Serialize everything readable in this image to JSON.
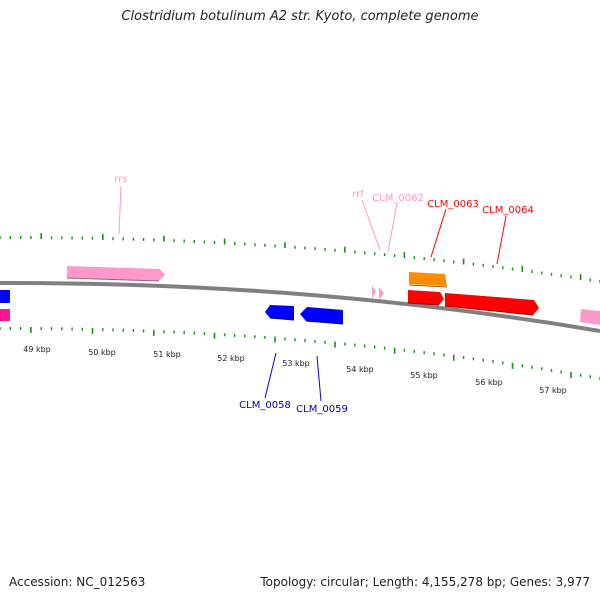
{
  "title": "Clostridium botulinum A2 str. Kyoto, complete genome",
  "footer": {
    "accession": "Accession: NC_012563",
    "summary": "Topology: circular; Length: 4,155,278 bp; Genes: 3,977"
  },
  "colors": {
    "backbone": "#808080",
    "tick": "#1f8a1f",
    "rna_pink": "#ff99cc",
    "red_gene": "#ff0000",
    "orange_gene": "#ff8c00",
    "blue_gene": "#0000ff",
    "magenta_gene": "#ff1493"
  },
  "scale_labels": [
    "49 kbp",
    "50 kbp",
    "51 kbp",
    "52 kbp",
    "53 kbp",
    "54 kbp",
    "55 kbp",
    "56 kbp",
    "57 kbp"
  ],
  "features": {
    "rrs": {
      "name": "rrs",
      "strand": "+",
      "color": "rna_pink"
    },
    "rrf": {
      "name": "rrf",
      "strand": "+",
      "color": "rna_pink"
    },
    "clm_0062": {
      "name": "CLM_0062",
      "strand": "+",
      "color": "rna_pink"
    },
    "clm_0063": {
      "name": "CLM_0063",
      "strand": "+",
      "color": "red_gene"
    },
    "clm_0064": {
      "name": "CLM_0064",
      "strand": "+",
      "color": "red_gene"
    },
    "clm_0063_orange": {
      "strand": "+",
      "color": "orange_gene"
    },
    "clm_0058": {
      "name": "CLM_0058",
      "strand": "-",
      "color": "blue_gene"
    },
    "clm_0059": {
      "name": "CLM_0059",
      "strand": "-",
      "color": "blue_gene"
    }
  }
}
